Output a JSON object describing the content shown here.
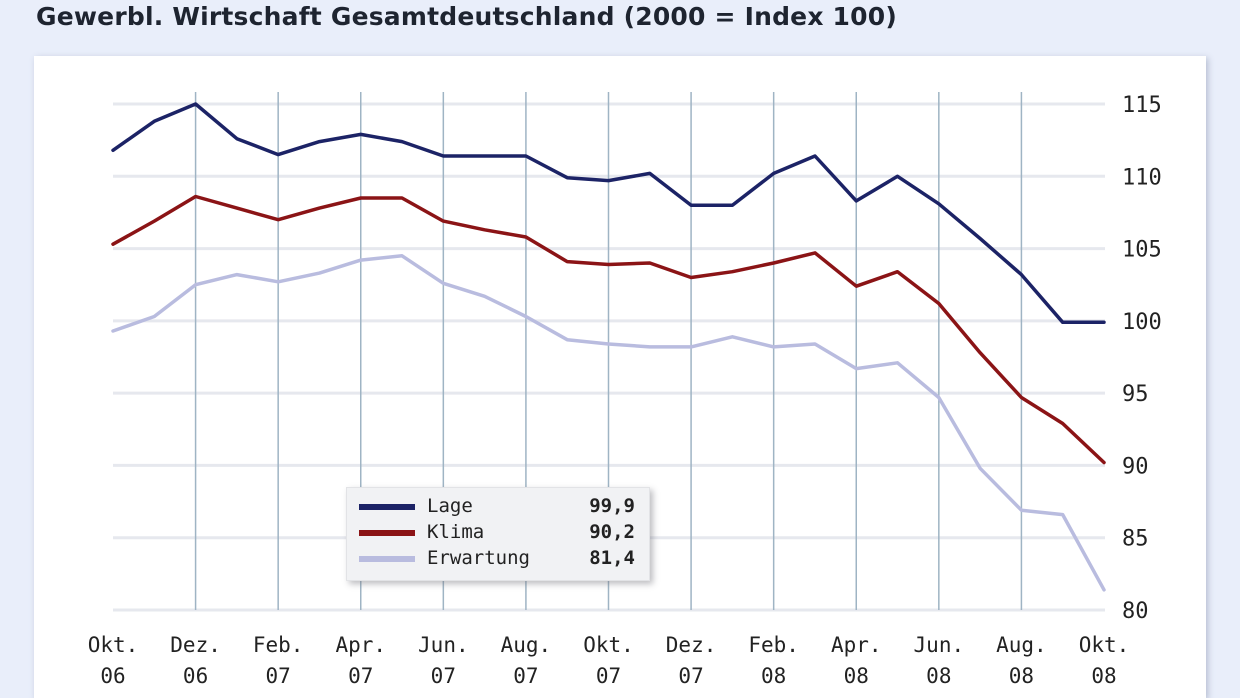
{
  "title": "Gewerbl. Wirtschaft Gesamtdeutschland (2000 = Index 100)",
  "chart_data": {
    "type": "line",
    "title": "Gewerbl. Wirtschaft Gesamtdeutschland (2000 = Index 100)",
    "ylim": [
      80,
      115
    ],
    "yticks": [
      "115",
      "110",
      "105",
      "100",
      "95",
      "90",
      "85",
      "80"
    ],
    "grid": true,
    "legend_position": "bottom-center",
    "x_tick_labels": [
      [
        "Okt.",
        "06"
      ],
      [
        "Dez.",
        "06"
      ],
      [
        "Feb.",
        "07"
      ],
      [
        "Apr.",
        "07"
      ],
      [
        "Jun.",
        "07"
      ],
      [
        "Aug.",
        "07"
      ],
      [
        "Okt.",
        "07"
      ],
      [
        "Dez.",
        "07"
      ],
      [
        "Feb.",
        "08"
      ],
      [
        "Apr.",
        "08"
      ],
      [
        "Jun.",
        "08"
      ],
      [
        "Aug.",
        "08"
      ],
      [
        "Okt.",
        "08"
      ]
    ],
    "x": [
      "Okt. 06",
      "Nov. 06",
      "Dez. 06",
      "Jan. 07",
      "Feb. 07",
      "Mär. 07",
      "Apr. 07",
      "Mai 07",
      "Jun. 07",
      "Jul. 07",
      "Aug. 07",
      "Sep. 07",
      "Okt. 07",
      "Nov. 07",
      "Dez. 07",
      "Jan. 08",
      "Feb. 08",
      "Mär. 08",
      "Apr. 08",
      "Mai 08",
      "Jun. 08",
      "Jul. 08",
      "Aug. 08",
      "Sep. 08",
      "Okt. 08"
    ],
    "series": [
      {
        "name": "Lage",
        "legend_value": "99,9",
        "color": "#1c2366",
        "values": [
          111.8,
          113.8,
          115.0,
          112.6,
          111.5,
          112.4,
          112.9,
          112.4,
          111.4,
          111.4,
          111.4,
          109.9,
          109.7,
          110.2,
          108.0,
          108.0,
          110.2,
          111.4,
          108.3,
          110.0,
          108.1,
          105.7,
          103.2,
          99.9,
          99.9
        ]
      },
      {
        "name": "Klima",
        "legend_value": "90,2",
        "color": "#8b1416",
        "values": [
          105.3,
          106.9,
          108.6,
          107.8,
          107.0,
          107.8,
          108.5,
          108.5,
          106.9,
          106.3,
          105.8,
          104.1,
          103.9,
          104.0,
          103.0,
          103.4,
          104.0,
          104.7,
          102.4,
          103.4,
          101.2,
          97.8,
          94.7,
          92.9,
          90.2
        ]
      },
      {
        "name": "Erwartung",
        "legend_value": "81,4",
        "color": "#b9bcdf",
        "values": [
          99.3,
          100.3,
          102.5,
          103.2,
          102.7,
          103.3,
          104.2,
          104.5,
          102.6,
          101.7,
          100.3,
          98.7,
          98.4,
          98.2,
          98.2,
          98.9,
          98.2,
          98.4,
          96.7,
          97.1,
          94.7,
          89.8,
          86.9,
          86.6,
          81.4
        ]
      }
    ]
  }
}
